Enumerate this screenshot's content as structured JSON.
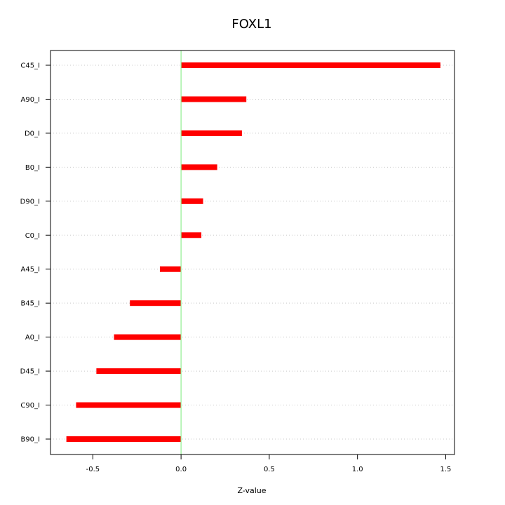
{
  "chart_data": {
    "type": "bar",
    "orientation": "horizontal",
    "title": "FOXL1",
    "xlabel": "Z-value",
    "ylabel": "",
    "categories": [
      "C45_I",
      "A90_I",
      "D0_I",
      "B0_I",
      "D90_I",
      "C0_I",
      "A45_I",
      "B45_I",
      "A0_I",
      "D45_I",
      "C90_I",
      "B90_I"
    ],
    "values": [
      1.47,
      0.37,
      0.345,
      0.205,
      0.125,
      0.115,
      -0.12,
      -0.29,
      -0.38,
      -0.48,
      -0.595,
      -0.65
    ],
    "xlim": [
      -0.74,
      1.55
    ],
    "xticks": [
      -0.5,
      0.0,
      0.5,
      1.0,
      1.5
    ],
    "xtick_labels": [
      "-0.5",
      "0.0",
      "0.5",
      "1.0",
      "1.5"
    ],
    "bar_color": "#ff0000",
    "zero_line_color": "#90ee90",
    "grid": "horizontal dotted",
    "legend": "none"
  }
}
